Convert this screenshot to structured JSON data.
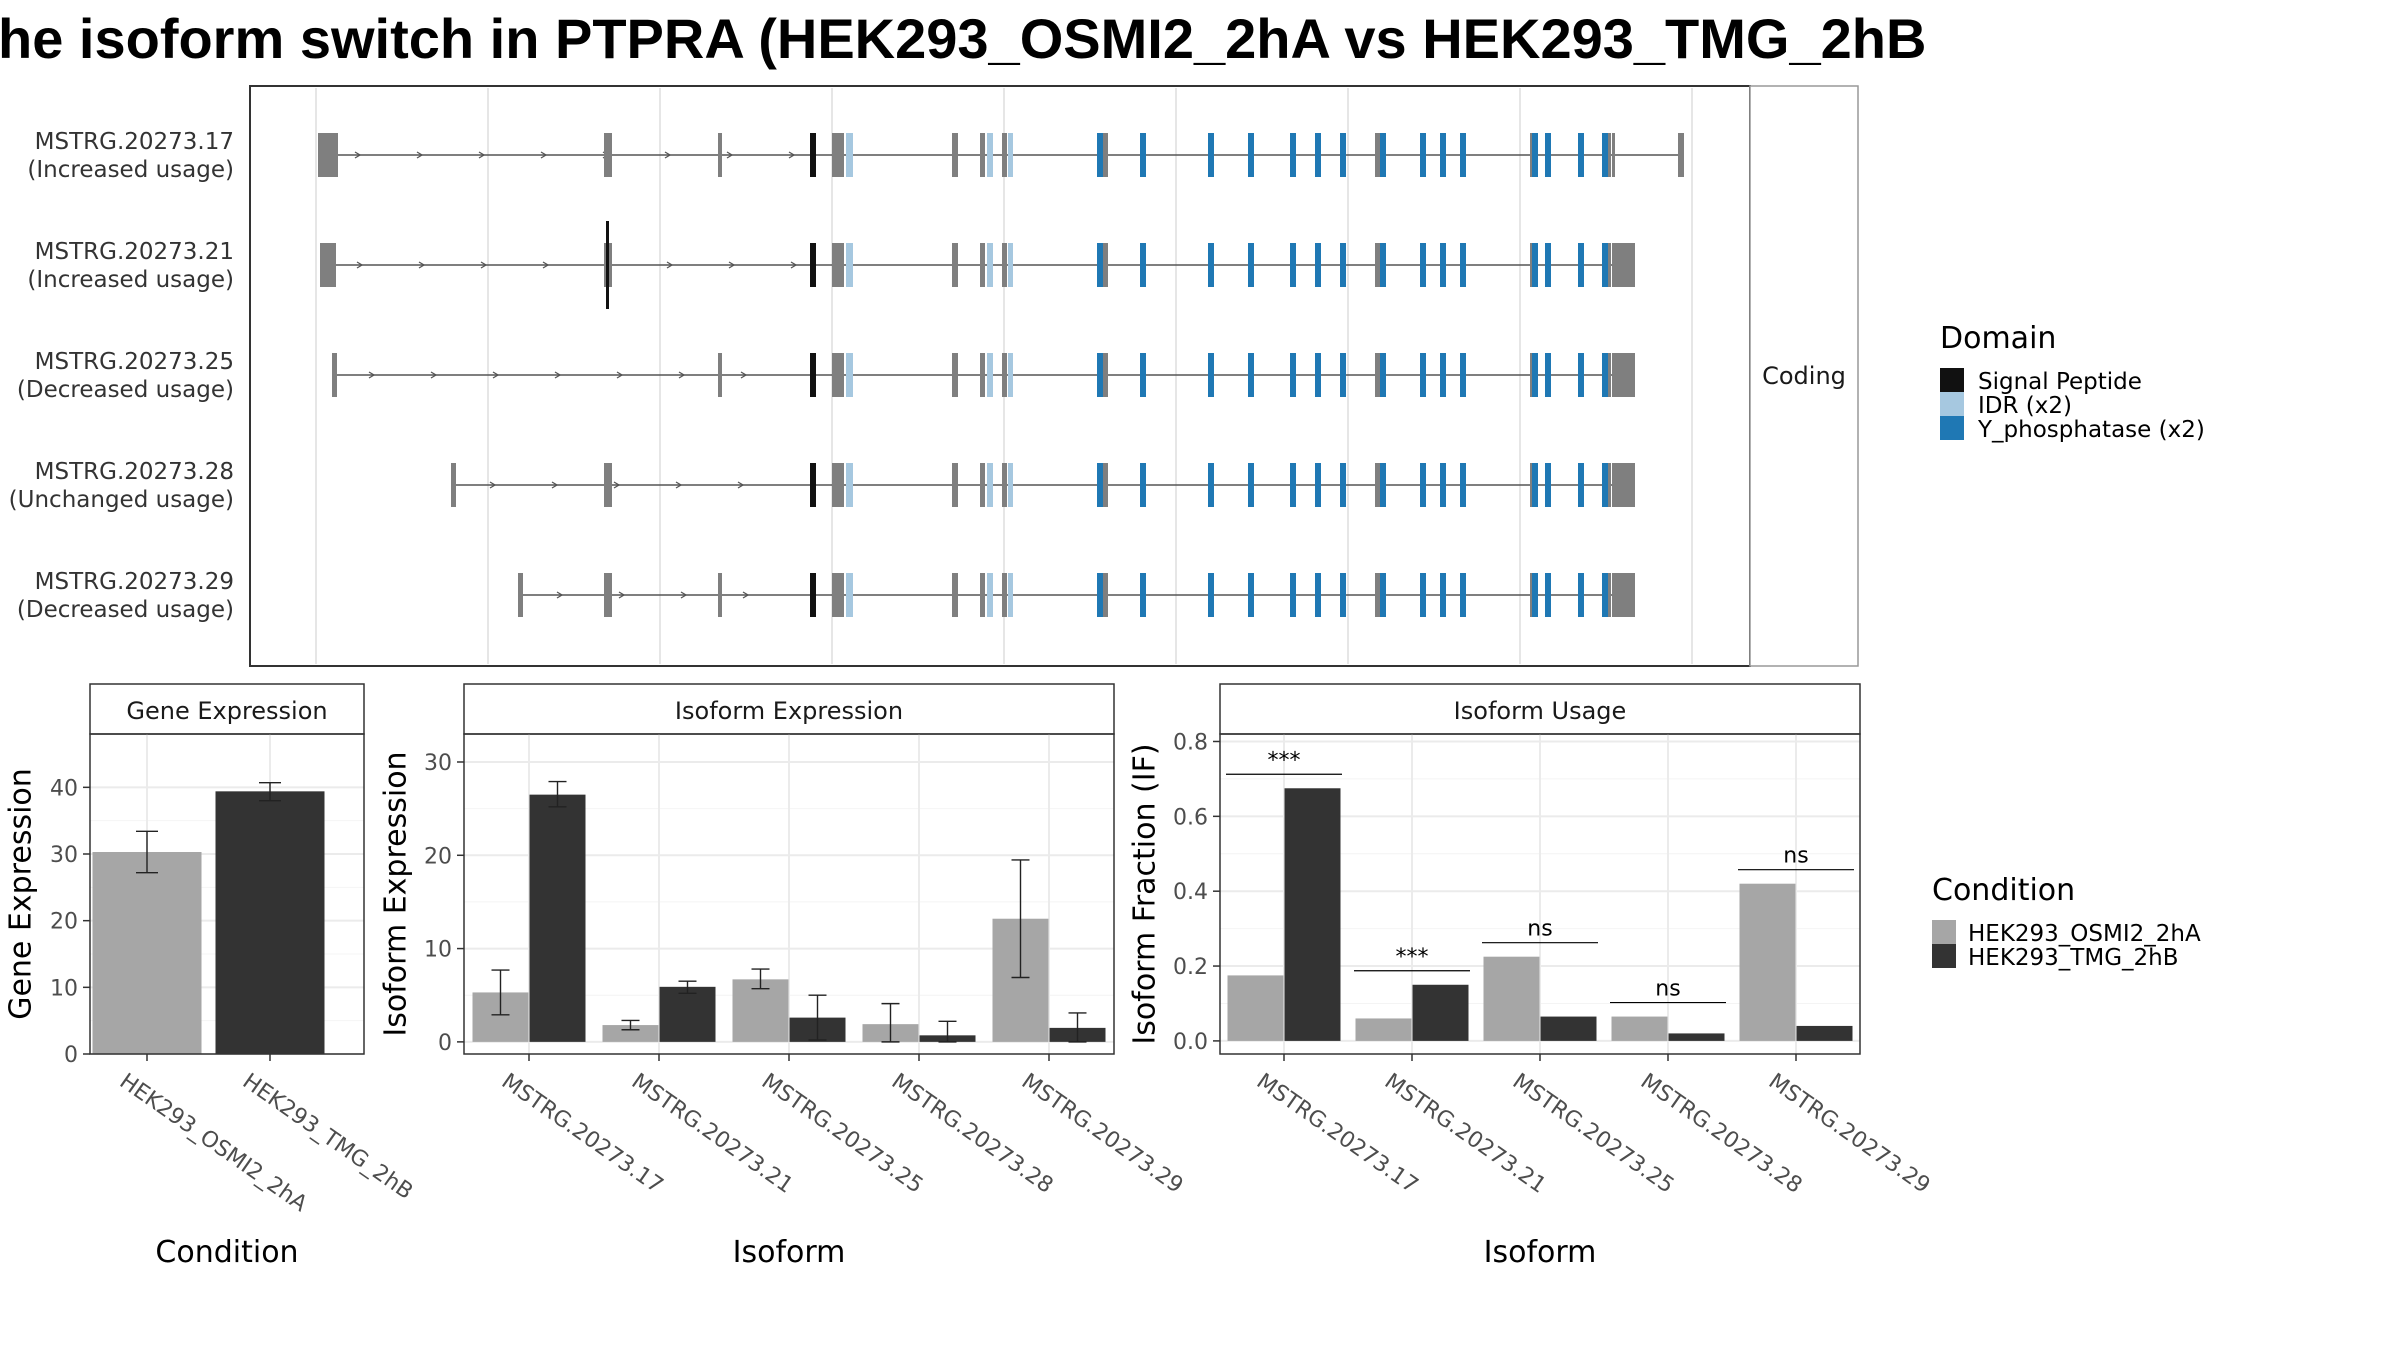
{
  "title": "he isoform switch in PTPRA (HEK293_OSMI2_2hA vs HEK293_TMG_2hB",
  "colors": {
    "cond1": "#a6a6a6",
    "cond2": "#333333",
    "signal_peptide": "#111111",
    "idr": "#a6c8e0",
    "y_phosphatase": "#1f78b4",
    "exon": "#7f7f7f"
  },
  "structure": {
    "strip_label": "Coding",
    "isoforms": [
      {
        "id": "MSTRG.20273.17",
        "usage": "(Increased usage)"
      },
      {
        "id": "MSTRG.20273.21",
        "usage": "(Increased usage)"
      },
      {
        "id": "MSTRG.20273.25",
        "usage": "(Decreased usage)"
      },
      {
        "id": "MSTRG.20273.28",
        "usage": "(Unchanged usage)"
      },
      {
        "id": "MSTRG.20273.29",
        "usage": "(Decreased usage)"
      }
    ]
  },
  "legends": {
    "domain_title": "Domain",
    "domain_items": [
      "Signal Peptide",
      "IDR (x2)",
      "Y_phosphatase (x2)"
    ],
    "condition_title": "Condition",
    "condition_items": [
      "HEK293_OSMI2_2hA",
      "HEK293_TMG_2hB"
    ]
  },
  "chart_data": [
    {
      "type": "bar",
      "title": "Gene Expression",
      "xlabel": "Condition",
      "ylabel": "Gene Expression",
      "ylim": [
        0,
        48
      ],
      "yticks": [
        0,
        10,
        20,
        30,
        40
      ],
      "categories": [
        "HEK293_OSMI2_2hA",
        "HEK293_TMG_2hB"
      ],
      "values": [
        30.3,
        39.4
      ],
      "errors": [
        [
          27.2,
          33.4
        ],
        [
          38.0,
          40.7
        ]
      ]
    },
    {
      "type": "bar",
      "title": "Isoform Expression",
      "xlabel": "Isoform",
      "ylabel": "Isoform Expression",
      "ylim": [
        -1.3,
        33
      ],
      "yticks": [
        0,
        10,
        20,
        30
      ],
      "categories": [
        "MSTRG.20273.17",
        "MSTRG.20273.21",
        "MSTRG.20273.25",
        "MSTRG.20273.28",
        "MSTRG.20273.29"
      ],
      "series": [
        {
          "name": "HEK293_OSMI2_2hA",
          "values": [
            5.3,
            1.8,
            6.7,
            1.9,
            13.2
          ],
          "errors": [
            [
              2.9,
              7.7
            ],
            [
              1.3,
              2.3
            ],
            [
              5.7,
              7.8
            ],
            [
              0.0,
              4.1
            ],
            [
              6.9,
              19.5
            ]
          ]
        },
        {
          "name": "HEK293_TMG_2hB",
          "values": [
            26.5,
            5.9,
            2.6,
            0.7,
            1.5
          ],
          "errors": [
            [
              25.2,
              27.9
            ],
            [
              5.2,
              6.5
            ],
            [
              0.2,
              5.0
            ],
            [
              0.0,
              2.2
            ],
            [
              0.0,
              3.1
            ]
          ]
        }
      ]
    },
    {
      "type": "bar",
      "title": "Isoform Usage",
      "xlabel": "Isoform",
      "ylabel": "Isoform Fraction (IF)",
      "ylim": [
        -0.035,
        0.82
      ],
      "yticks": [
        0.0,
        0.2,
        0.4,
        0.6,
        0.8
      ],
      "ytick_labels": [
        "0.0",
        "0.2",
        "0.4",
        "0.6",
        "0.8"
      ],
      "categories": [
        "MSTRG.20273.17",
        "MSTRG.20273.21",
        "MSTRG.20273.25",
        "MSTRG.20273.28",
        "MSTRG.20273.29"
      ],
      "series": [
        {
          "name": "HEK293_OSMI2_2hA",
          "values": [
            0.175,
            0.06,
            0.225,
            0.065,
            0.42
          ]
        },
        {
          "name": "HEK293_TMG_2hB",
          "values": [
            0.675,
            0.15,
            0.065,
            0.02,
            0.04
          ]
        }
      ],
      "significance": [
        "***",
        "***",
        "ns",
        "ns",
        "ns"
      ]
    }
  ]
}
